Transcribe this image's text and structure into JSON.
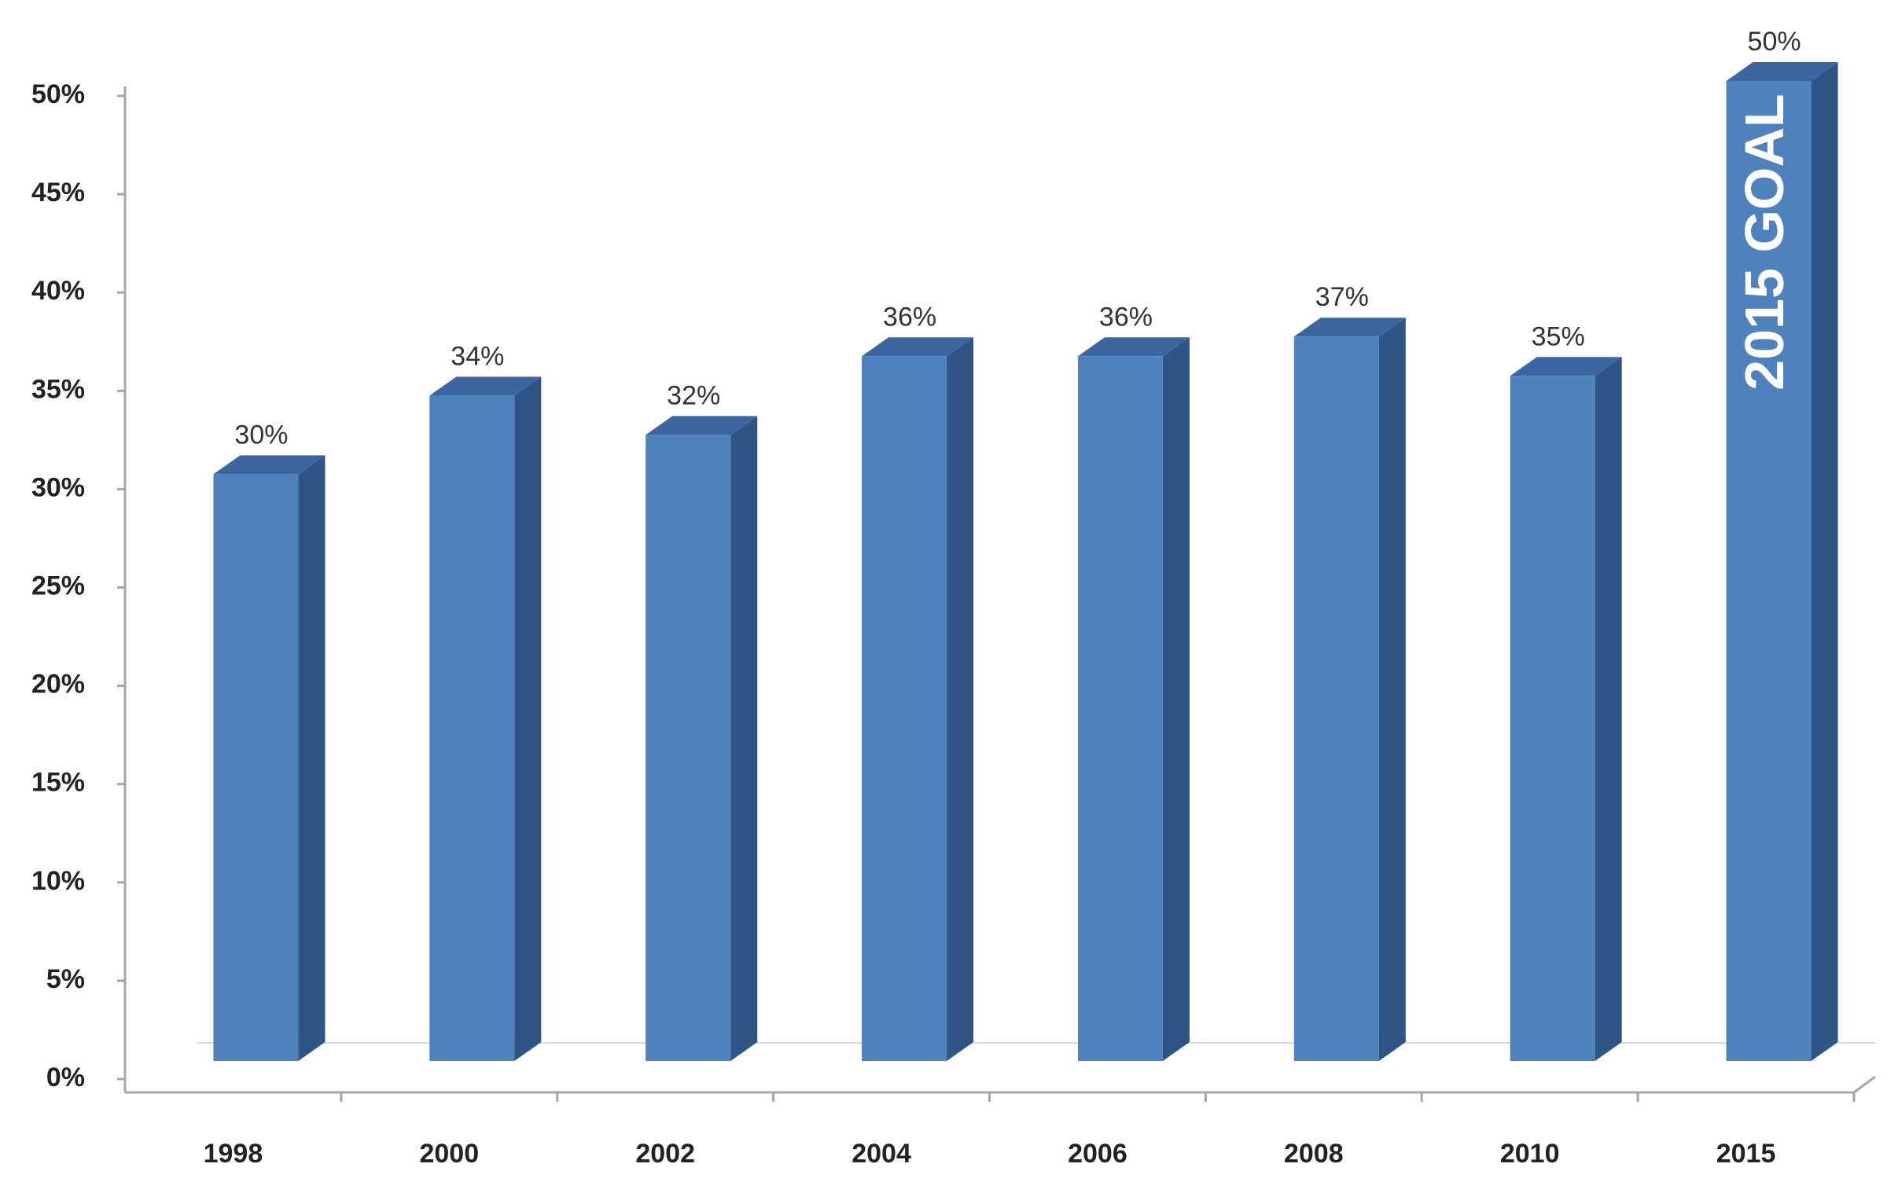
{
  "chart_data": {
    "type": "bar3d",
    "categories": [
      "1998",
      "2000",
      "2002",
      "2004",
      "2006",
      "2008",
      "2010",
      "2015"
    ],
    "values": [
      30,
      34,
      32,
      36,
      36,
      37,
      35,
      50
    ],
    "value_labels": [
      "30%",
      "34%",
      "32%",
      "36%",
      "36%",
      "37%",
      "35%",
      "50%"
    ],
    "color": "#4f81bd",
    "annotation": "2015 GOAL",
    "ylim": [
      0,
      50
    ],
    "yticks": [
      {
        "value": 0,
        "label": "0%"
      },
      {
        "value": 5,
        "label": "5%"
      },
      {
        "value": 10,
        "label": "10%"
      },
      {
        "value": 15,
        "label": "15%"
      },
      {
        "value": 20,
        "label": "20%"
      },
      {
        "value": 25,
        "label": "25%"
      },
      {
        "value": 30,
        "label": "30%"
      },
      {
        "value": 35,
        "label": "35%"
      },
      {
        "value": 40,
        "label": "40%"
      },
      {
        "value": 45,
        "label": "45%"
      },
      {
        "value": 50,
        "label": "50%"
      }
    ],
    "grid": false
  }
}
